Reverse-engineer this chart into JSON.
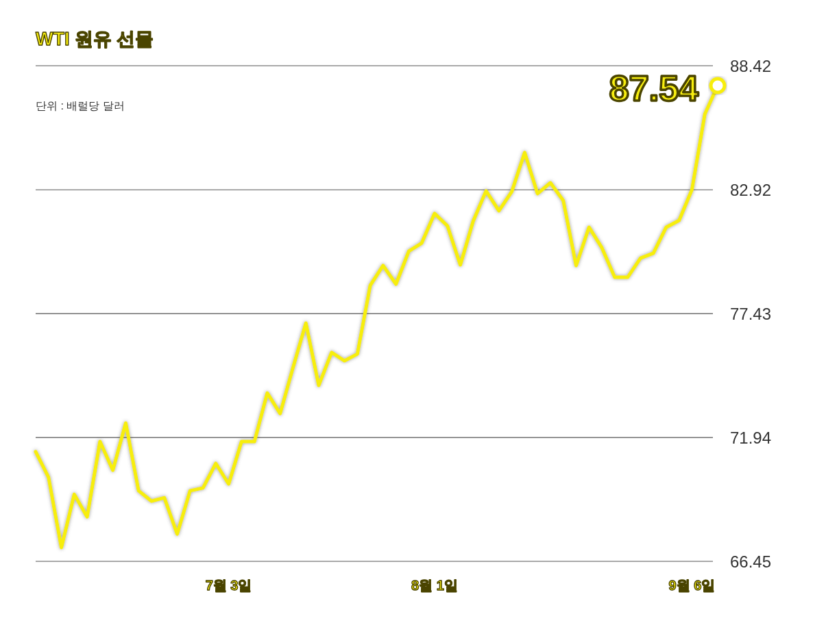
{
  "chart_data": {
    "type": "line",
    "title": "WTI 원유 선물",
    "annotations": [
      "단위 : 배럴당 달러"
    ],
    "categories": [
      null,
      null,
      null,
      null,
      null,
      null,
      null,
      null,
      null,
      null,
      null,
      null,
      null,
      null,
      null,
      "7월 3일",
      null,
      null,
      null,
      null,
      null,
      null,
      null,
      null,
      null,
      null,
      null,
      null,
      null,
      null,
      null,
      "8월 1일",
      null,
      null,
      null,
      null,
      null,
      null,
      null,
      null,
      null,
      null,
      null,
      null,
      null,
      null,
      null,
      null,
      null,
      null,
      null,
      "9월 6일",
      null,
      null
    ],
    "values": [
      71.31,
      70.18,
      67.06,
      69.42,
      68.42,
      71.76,
      70.49,
      72.58,
      69.58,
      69.12,
      69.27,
      67.66,
      69.58,
      69.7,
      70.79,
      69.88,
      71.76,
      71.76,
      73.91,
      73.0,
      75.04,
      77.01,
      74.25,
      75.71,
      75.34,
      75.64,
      78.68,
      79.56,
      78.74,
      80.2,
      80.56,
      81.87,
      81.32,
      79.59,
      81.53,
      82.87,
      81.99,
      82.84,
      84.57,
      82.75,
      83.23,
      82.44,
      79.56,
      81.26,
      80.35,
      79.04,
      79.04,
      79.89,
      80.11,
      81.26,
      81.56,
      82.93,
      86.27,
      87.54
    ],
    "value_labels": [
      null,
      null,
      null,
      null,
      null,
      null,
      null,
      null,
      null,
      null,
      null,
      null,
      null,
      null,
      null,
      null,
      null,
      null,
      null,
      null,
      null,
      null,
      null,
      null,
      null,
      null,
      null,
      null,
      null,
      null,
      null,
      null,
      null,
      null,
      null,
      null,
      null,
      null,
      null,
      null,
      null,
      null,
      null,
      null,
      null,
      null,
      null,
      null,
      null,
      null,
      null,
      null,
      null,
      "87.54"
    ],
    "color": "#f7ee10",
    "ylim": [
      66.45,
      88.42
    ],
    "yticks": [
      66.45,
      71.94,
      77.43,
      82.92,
      88.42
    ],
    "grid": "y"
  }
}
